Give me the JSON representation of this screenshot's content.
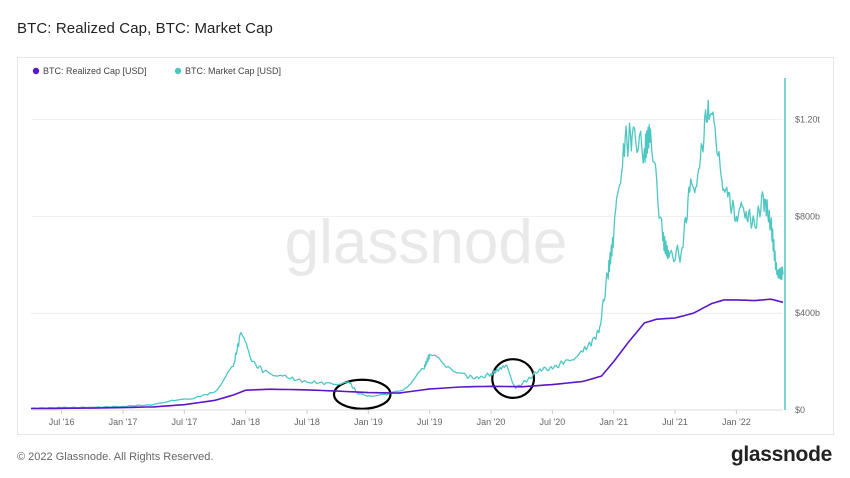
{
  "title": "BTC: Realized Cap, BTC: Market Cap",
  "footer": "© 2022 Glassnode. All Rights Reserved.",
  "brand": "glassnode",
  "watermark": "glassnode",
  "colors": {
    "realized": "#5b16c9",
    "market": "#4ec7c3",
    "annotation": "#000000",
    "grid": "#eeeeee"
  },
  "chart_data": {
    "type": "line",
    "title": "BTC: Realized Cap, BTC: Market Cap",
    "xlabel": "",
    "ylabel": "",
    "y_axis_position": "right",
    "ylim": [
      0,
      1380
    ],
    "y_unit": "USD billions",
    "legend_position": "top-left",
    "grid": true,
    "x_ticks": [
      {
        "label": "Jul '16",
        "t": 2016.5
      },
      {
        "label": "Jan '17",
        "t": 2017.0
      },
      {
        "label": "Jul '17",
        "t": 2017.5
      },
      {
        "label": "Jan '18",
        "t": 2018.0
      },
      {
        "label": "Jul '18",
        "t": 2018.5
      },
      {
        "label": "Jan '19",
        "t": 2019.0
      },
      {
        "label": "Jul '19",
        "t": 2019.5
      },
      {
        "label": "Jan '20",
        "t": 2020.0
      },
      {
        "label": "Jul '20",
        "t": 2020.5
      },
      {
        "label": "Jan '21",
        "t": 2021.0
      },
      {
        "label": "Jul '21",
        "t": 2021.5
      },
      {
        "label": "Jan '22",
        "t": 2022.0
      }
    ],
    "y_ticks": [
      {
        "label": "$0",
        "v": 0
      },
      {
        "label": "$400b",
        "v": 400
      },
      {
        "label": "$800b",
        "v": 800
      },
      {
        "label": "$1.20t",
        "v": 1200
      }
    ],
    "x_range": [
      2016.25,
      2022.38
    ],
    "series": [
      {
        "name": "BTC: Realized Cap [USD]",
        "color": "#5b16c9",
        "points": [
          [
            2016.25,
            6
          ],
          [
            2016.5,
            7
          ],
          [
            2016.75,
            8
          ],
          [
            2017.0,
            10
          ],
          [
            2017.25,
            13
          ],
          [
            2017.5,
            22
          ],
          [
            2017.75,
            40
          ],
          [
            2017.9,
            62
          ],
          [
            2018.0,
            82
          ],
          [
            2018.2,
            86
          ],
          [
            2018.5,
            83
          ],
          [
            2018.75,
            78
          ],
          [
            2019.0,
            72
          ],
          [
            2019.25,
            70
          ],
          [
            2019.5,
            87
          ],
          [
            2019.75,
            95
          ],
          [
            2020.0,
            98
          ],
          [
            2020.25,
            96
          ],
          [
            2020.5,
            105
          ],
          [
            2020.75,
            118
          ],
          [
            2020.9,
            140
          ],
          [
            2021.0,
            200
          ],
          [
            2021.12,
            280
          ],
          [
            2021.25,
            360
          ],
          [
            2021.35,
            375
          ],
          [
            2021.5,
            380
          ],
          [
            2021.65,
            400
          ],
          [
            2021.8,
            440
          ],
          [
            2021.9,
            455
          ],
          [
            2022.0,
            455
          ],
          [
            2022.15,
            452
          ],
          [
            2022.28,
            458
          ],
          [
            2022.38,
            445
          ]
        ]
      },
      {
        "name": "BTC: Market Cap [USD]",
        "color": "#4ec7c3",
        "points": [
          [
            2016.25,
            7
          ],
          [
            2016.5,
            10
          ],
          [
            2016.75,
            11
          ],
          [
            2017.0,
            15
          ],
          [
            2017.25,
            22
          ],
          [
            2017.4,
            40
          ],
          [
            2017.55,
            45
          ],
          [
            2017.75,
            75
          ],
          [
            2017.9,
            180
          ],
          [
            2017.96,
            320
          ],
          [
            2018.05,
            200
          ],
          [
            2018.15,
            160
          ],
          [
            2018.3,
            140
          ],
          [
            2018.5,
            115
          ],
          [
            2018.7,
            110
          ],
          [
            2018.85,
            110
          ],
          [
            2018.92,
            65
          ],
          [
            2019.0,
            60
          ],
          [
            2019.15,
            62
          ],
          [
            2019.3,
            90
          ],
          [
            2019.45,
            170
          ],
          [
            2019.5,
            230
          ],
          [
            2019.65,
            180
          ],
          [
            2019.8,
            140
          ],
          [
            2019.9,
            130
          ],
          [
            2020.0,
            150
          ],
          [
            2020.12,
            185
          ],
          [
            2020.2,
            90
          ],
          [
            2020.3,
            125
          ],
          [
            2020.4,
            170
          ],
          [
            2020.5,
            170
          ],
          [
            2020.6,
            200
          ],
          [
            2020.75,
            240
          ],
          [
            2020.88,
            320
          ],
          [
            2020.95,
            560
          ],
          [
            2021.0,
            720
          ],
          [
            2021.08,
            1100
          ],
          [
            2021.15,
            1130
          ],
          [
            2021.25,
            1080
          ],
          [
            2021.3,
            1160
          ],
          [
            2021.4,
            700
          ],
          [
            2021.45,
            630
          ],
          [
            2021.55,
            650
          ],
          [
            2021.62,
            900
          ],
          [
            2021.7,
            1000
          ],
          [
            2021.77,
            1280
          ],
          [
            2021.85,
            1050
          ],
          [
            2021.93,
            880
          ],
          [
            2022.0,
            800
          ],
          [
            2022.08,
            820
          ],
          [
            2022.15,
            760
          ],
          [
            2022.22,
            880
          ],
          [
            2022.28,
            770
          ],
          [
            2022.33,
            560
          ],
          [
            2022.38,
            560
          ]
        ]
      }
    ],
    "annotations": [
      {
        "type": "ellipse",
        "t": 2018.95,
        "v": 65,
        "rt": 0.23,
        "rv": 60
      },
      {
        "type": "ellipse",
        "t": 2020.18,
        "v": 130,
        "rt": 0.17,
        "rv": 80
      }
    ]
  }
}
